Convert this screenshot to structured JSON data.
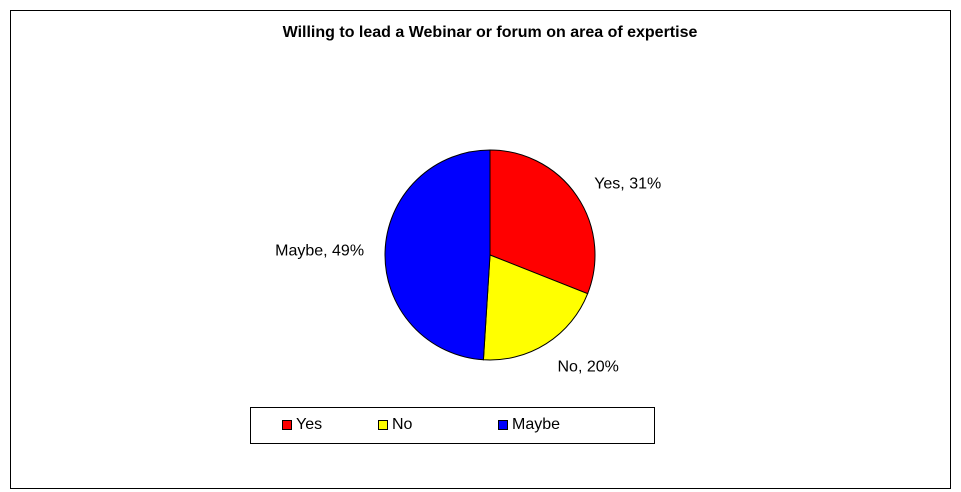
{
  "chart_data": {
    "type": "pie",
    "title": "Willing to lead a Webinar or forum on area of expertise",
    "categories": [
      "Yes",
      "No",
      "Maybe"
    ],
    "values": [
      31,
      20,
      49
    ],
    "value_labels": [
      "Yes, 31%",
      "No, 20%",
      "Maybe, 49%"
    ],
    "colors": [
      "#ff0000",
      "#ffff00",
      "#0000ff"
    ],
    "legend": "bottom"
  }
}
